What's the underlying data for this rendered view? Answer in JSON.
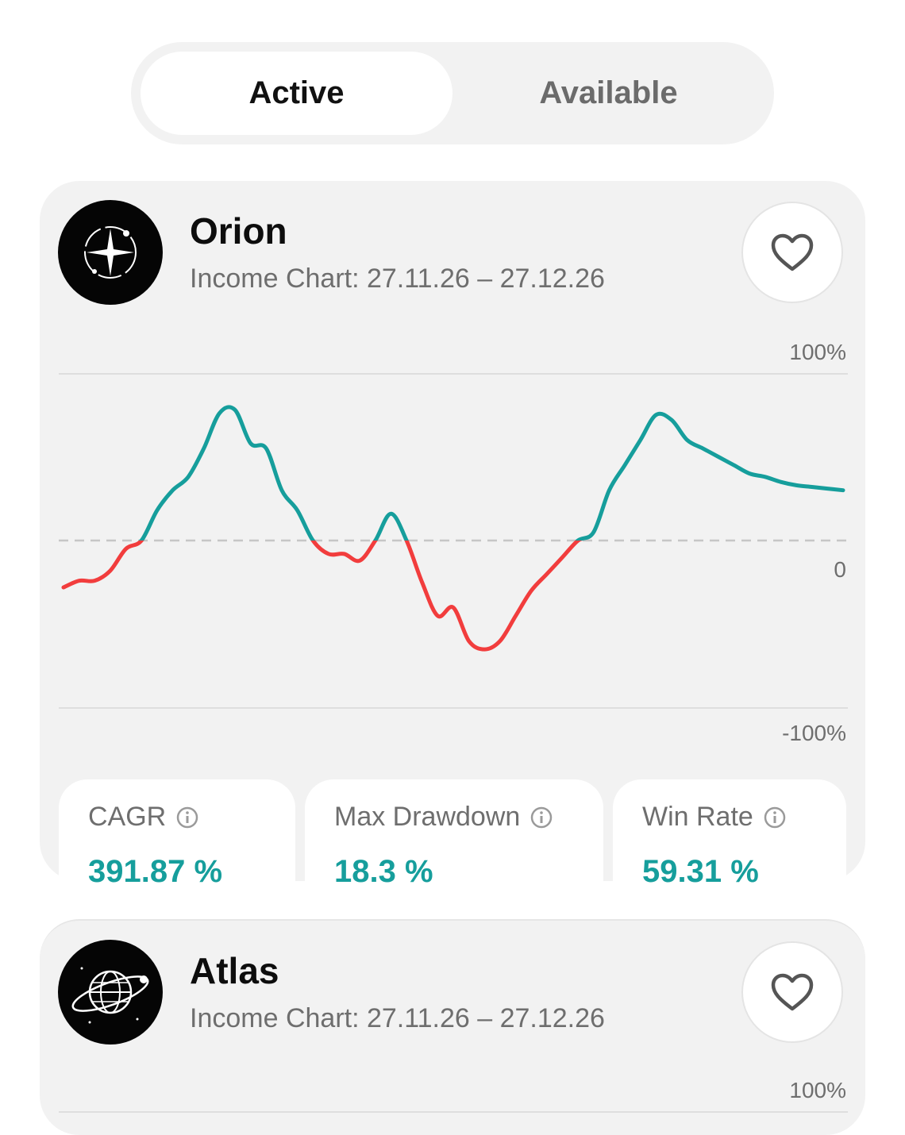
{
  "tabs": [
    {
      "label": "Active",
      "selected": true
    },
    {
      "label": "Available",
      "selected": false
    }
  ],
  "colors": {
    "positive": "#169e9c",
    "negative": "#f23d3d",
    "muted_text": "#6e6e6e",
    "card_background": "#f2f2f2"
  },
  "cards": [
    {
      "name": "Orion",
      "subtitle": "Income Chart: 27.11.26 – 27.12.26",
      "avatar_icon": "compass-star-icon",
      "favorite_icon": "heart-outline-icon",
      "y_axis_top": "100%",
      "y_axis_zero": "0",
      "y_axis_bottom": "-100%",
      "metrics": [
        {
          "label": "CAGR",
          "value": "391.87 %",
          "icon": "info-icon"
        },
        {
          "label": "Max Drawdown",
          "value": "18.3 %",
          "icon": "info-icon"
        },
        {
          "label": "Win Rate",
          "value": "59.31 %",
          "icon": "info-icon"
        }
      ]
    },
    {
      "name": "Atlas",
      "subtitle": "Income Chart: 27.11.26 – 27.12.26",
      "avatar_icon": "globe-orbit-icon",
      "favorite_icon": "heart-outline-icon",
      "y_axis_top": "100%"
    }
  ],
  "chart_data": {
    "type": "line",
    "title": "",
    "xlabel": "",
    "ylabel": "",
    "ylim": [
      -100,
      100
    ],
    "baseline": 0,
    "positive_color": "#169e9c",
    "negative_color": "#f23d3d",
    "x": [
      0,
      2,
      4,
      6,
      8,
      10,
      12,
      14,
      16,
      18,
      20,
      22,
      24,
      26,
      28,
      30,
      32,
      34,
      36,
      38,
      40,
      42,
      44,
      46,
      48,
      50,
      52,
      54,
      56,
      58,
      60,
      62,
      64,
      66,
      68,
      70,
      72,
      74,
      76,
      78,
      80,
      82,
      84,
      86,
      88,
      90,
      92,
      94,
      96,
      98,
      100
    ],
    "y": [
      -28,
      -24,
      -24,
      -18,
      -5,
      0,
      18,
      30,
      38,
      55,
      76,
      78,
      58,
      55,
      30,
      18,
      0,
      -8,
      -8,
      -12,
      0,
      16,
      0,
      -25,
      -45,
      -40,
      -60,
      -65,
      -60,
      -45,
      -30,
      -20,
      -10,
      0,
      5,
      30,
      45,
      60,
      75,
      72,
      60,
      55,
      50,
      45,
      40,
      38,
      35,
      33,
      32,
      31,
      30
    ]
  }
}
